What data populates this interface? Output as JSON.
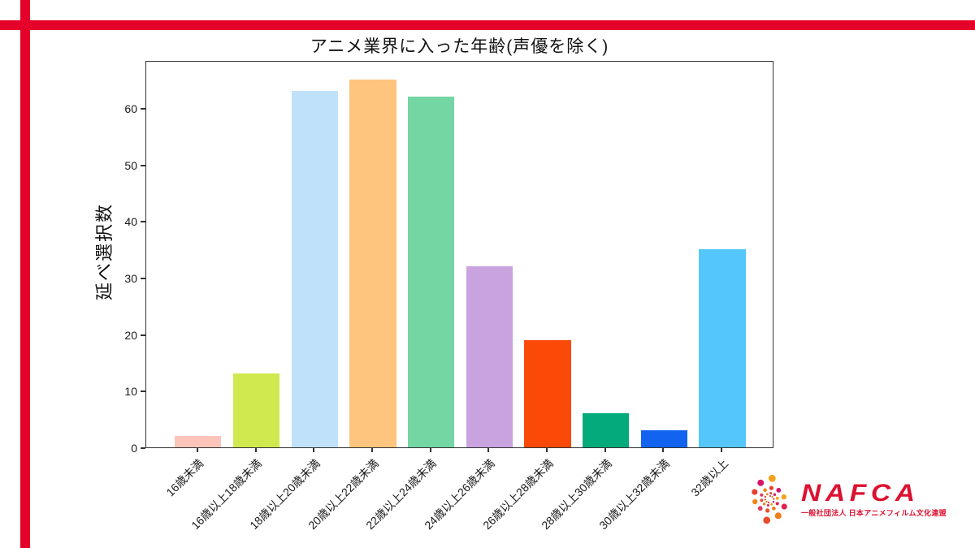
{
  "decor": {
    "cross_color": "#e50029"
  },
  "chart_data": {
    "type": "bar",
    "title": "アニメ業界に入った年齢(声優を除く)",
    "xlabel": "",
    "ylabel": "延べ選択数",
    "categories": [
      "16歳未満",
      "16歳以上18歳未満",
      "18歳以上20歳未満",
      "20歳以上22歳未満",
      "22歳以上24歳未満",
      "24歳以上26歳未満",
      "26歳以上28歳未満",
      "28歳以上30歳未満",
      "30歳以上32歳未満",
      "32歳以上"
    ],
    "values": [
      2,
      13,
      63,
      65,
      62,
      32,
      19,
      6,
      3,
      35
    ],
    "bar_colors": [
      "#fdc5ba",
      "#d0e94f",
      "#c0e1fa",
      "#fdc57d",
      "#74d6a2",
      "#c9a3e0",
      "#fb4a08",
      "#05aa7a",
      "#1263f0",
      "#54c6fc"
    ],
    "yticks": [
      0,
      10,
      20,
      30,
      40,
      50,
      60
    ],
    "ylim": [
      0,
      68.5
    ],
    "grid": false,
    "legend": "none",
    "axis_color": "#333333"
  },
  "logo": {
    "wordmark": "NAFCA",
    "subtitle": "一般社団法人 日本アニメフィルム文化連盟",
    "brand_color": "#dc1230",
    "dot_colors": [
      "#e84b2c",
      "#ef7d1a",
      "#e0244d",
      "#f2a21d",
      "#d6156b",
      "#e8402d",
      "#f08519",
      "#e23a5f"
    ]
  }
}
